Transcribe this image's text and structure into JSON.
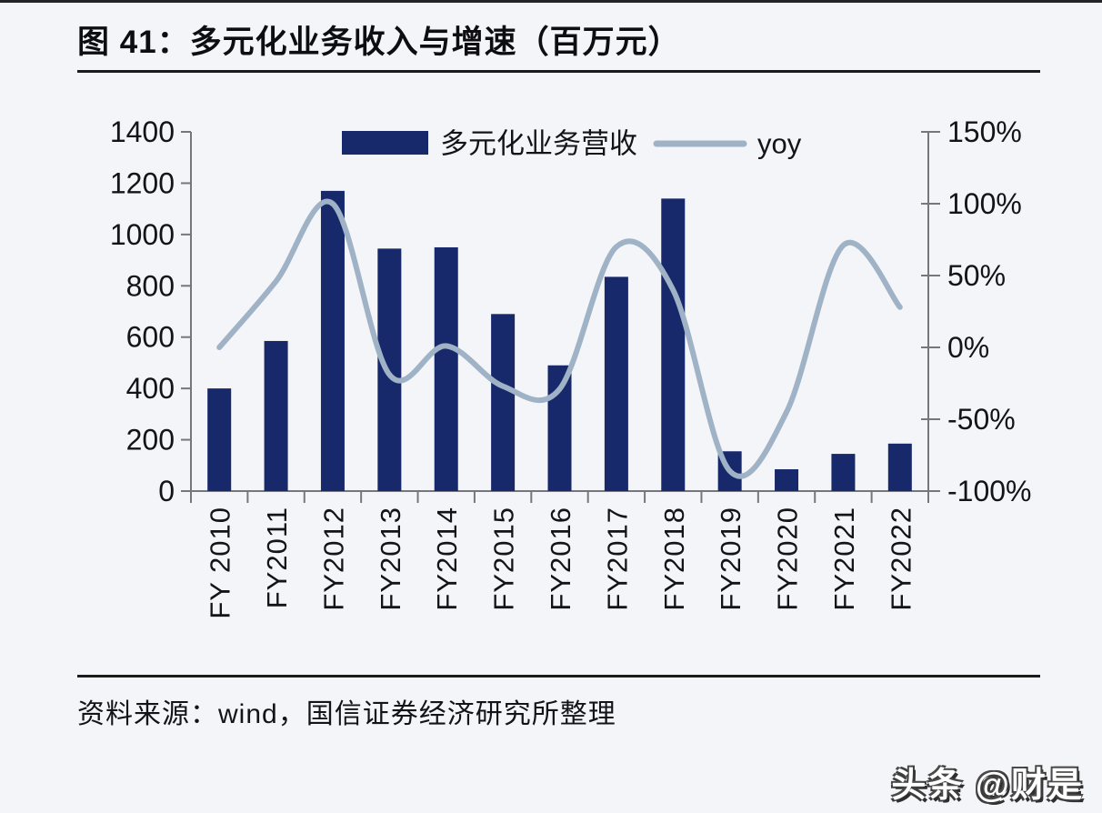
{
  "page": {
    "title": "图 41：多元化业务收入与增速（百万元）",
    "source_note": "资料来源：wind，国信证券经济研究所整理",
    "watermark": "头条 @财是"
  },
  "chart_data": {
    "type": "bar",
    "subtype": "combo-bar-line-dual-axis",
    "title": "多元化业务收入与增速（百万元）",
    "categories": [
      "FY 2010",
      "FY2011",
      "FY2012",
      "FY2013",
      "FY2014",
      "FY2015",
      "FY2016",
      "FY2017",
      "FY2018",
      "FY2019",
      "FY2020",
      "FY2021",
      "FY2022"
    ],
    "series": [
      {
        "name": "多元化业务营收",
        "type": "bar",
        "axis": "left",
        "color": "#17286B",
        "values": [
          400,
          585,
          1170,
          945,
          950,
          690,
          490,
          835,
          1140,
          155,
          85,
          145,
          185
        ]
      },
      {
        "name": "yoy",
        "type": "line",
        "axis": "right",
        "color": "#9FB2C6",
        "unit": "%",
        "values": [
          0,
          46,
          100,
          -19,
          1,
          -27,
          -29,
          70,
          40,
          -86,
          -45,
          71,
          28
        ]
      }
    ],
    "left_axis": {
      "min": 0,
      "max": 1400,
      "step": 200,
      "tick_labels": [
        "0",
        "200",
        "400",
        "600",
        "800",
        "1000",
        "1200",
        "1400"
      ]
    },
    "right_axis": {
      "min": -100,
      "max": 150,
      "step": 50,
      "tick_labels": [
        "-100%",
        "-50%",
        "0%",
        "50%",
        "100%",
        "150%"
      ]
    },
    "legend": {
      "position": "top-center",
      "entries": [
        "多元化业务营收",
        "yoy"
      ]
    },
    "grid": false
  },
  "colors": {
    "background": "#F4F5F8",
    "bar": "#17286B",
    "line": "#9FB2C6",
    "axis": "#76767E",
    "text": "#141418",
    "rule": "#1B1B1B"
  }
}
